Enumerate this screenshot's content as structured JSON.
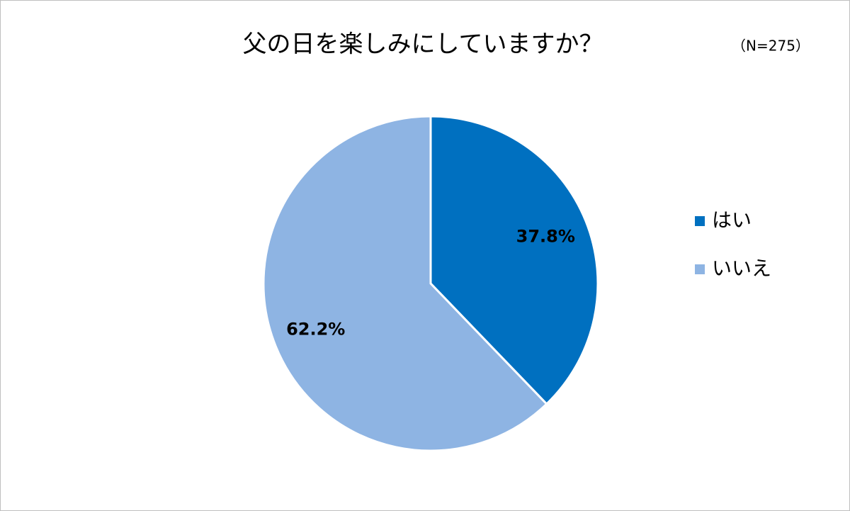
{
  "chart_data": {
    "type": "pie",
    "title": "父の日を楽しみにしていますか？",
    "subtitle": "（N=275）",
    "categories": [
      "はい",
      "いいえ"
    ],
    "values": [
      37.8,
      62.2
    ],
    "value_labels": [
      "37.8%",
      "62.2%"
    ],
    "colors": [
      "#0070c0",
      "#8eb4e3"
    ],
    "legend": "right"
  }
}
